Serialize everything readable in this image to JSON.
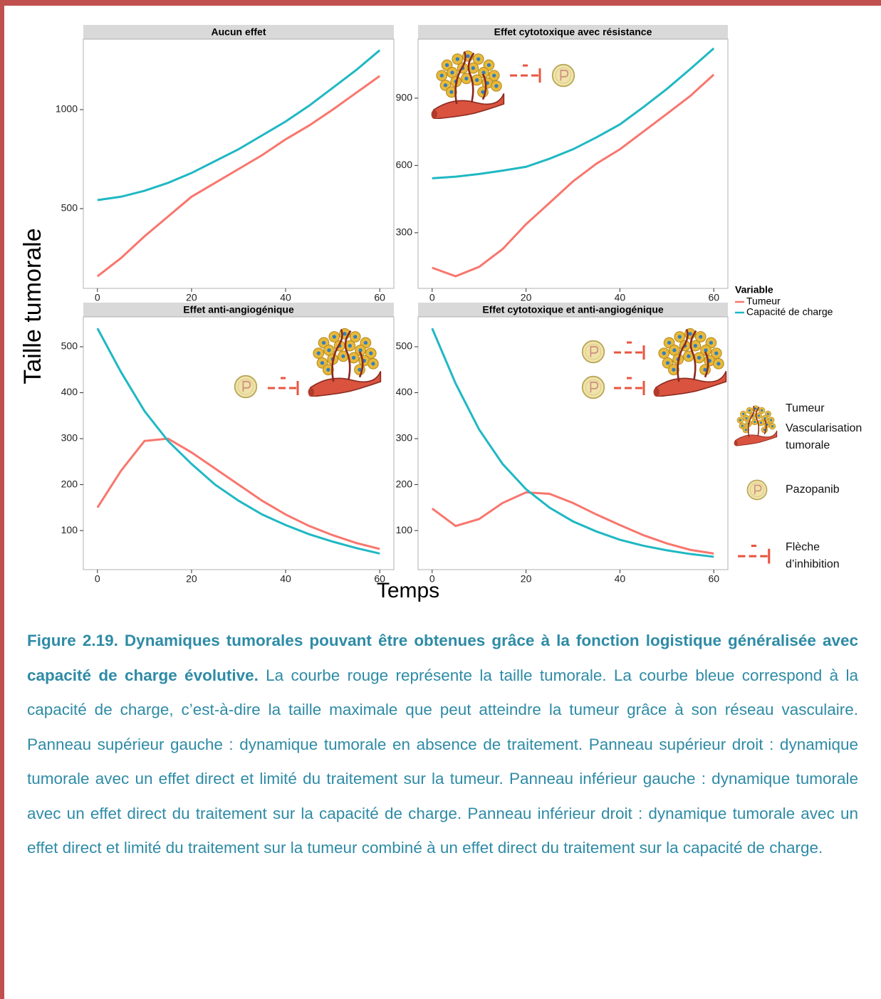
{
  "chart_data": [
    {
      "type": "line",
      "title": "Aucun effet",
      "x": [
        0,
        5,
        10,
        15,
        20,
        25,
        30,
        35,
        40,
        45,
        50,
        55,
        60
      ],
      "series": [
        {
          "name": "Tumeur",
          "color": "#f8766d",
          "values": [
            158,
            250,
            360,
            460,
            560,
            630,
            700,
            770,
            850,
            920,
            1000,
            1085,
            1170
          ]
        },
        {
          "name": "Capacité de charge",
          "color": "#1fb8c3",
          "values": [
            543,
            560,
            590,
            630,
            680,
            740,
            800,
            870,
            940,
            1020,
            1110,
            1200,
            1300
          ]
        }
      ],
      "xlim": [
        -3,
        63
      ],
      "xticks": [
        0,
        20,
        40,
        60
      ],
      "ylim": [
        97,
        1356
      ],
      "yticks": [
        500,
        1000
      ]
    },
    {
      "type": "line",
      "title": "Effet cytotoxique avec résistance",
      "x": [
        0,
        5,
        10,
        15,
        20,
        25,
        30,
        35,
        40,
        45,
        50,
        55,
        60
      ],
      "series": [
        {
          "name": "Tumeur",
          "color": "#f8766d",
          "values": [
            144,
            106,
            148,
            227,
            338,
            433,
            529,
            608,
            672,
            751,
            830,
            910,
            1005
          ]
        },
        {
          "name": "Capacité de charge",
          "color": "#1fb8c3",
          "values": [
            543,
            550,
            562,
            577,
            594,
            630,
            672,
            725,
            783,
            860,
            941,
            1030,
            1122
          ]
        }
      ],
      "xlim": [
        -3,
        63
      ],
      "xticks": [
        0,
        20,
        40,
        60
      ],
      "ylim": [
        52,
        1163
      ],
      "yticks": [
        300,
        600,
        900
      ]
    },
    {
      "type": "line",
      "title": "Effet anti-angiogénique",
      "x": [
        0,
        5,
        10,
        15,
        20,
        25,
        30,
        35,
        40,
        45,
        50,
        55,
        60
      ],
      "series": [
        {
          "name": "Tumeur",
          "color": "#f8766d",
          "values": [
            150,
            230,
            295,
            300,
            270,
            235,
            200,
            165,
            135,
            110,
            90,
            73,
            60
          ]
        },
        {
          "name": "Capacité de charge",
          "color": "#1fb8c3",
          "values": [
            540,
            445,
            360,
            295,
            245,
            200,
            165,
            135,
            112,
            92,
            76,
            62,
            50
          ]
        }
      ],
      "xlim": [
        -3,
        63
      ],
      "xticks": [
        0,
        20,
        40,
        60
      ],
      "ylim": [
        15,
        565
      ],
      "yticks": [
        100,
        200,
        300,
        400,
        500
      ]
    },
    {
      "type": "line",
      "title": "Effet cytotoxique et anti-angiogénique",
      "x": [
        0,
        5,
        10,
        15,
        20,
        25,
        30,
        35,
        40,
        45,
        50,
        55,
        60
      ],
      "series": [
        {
          "name": "Tumeur",
          "color": "#f8766d",
          "values": [
            148,
            110,
            125,
            160,
            183,
            180,
            160,
            135,
            112,
            90,
            72,
            58,
            50
          ]
        },
        {
          "name": "Capacité de charge",
          "color": "#1fb8c3",
          "values": [
            540,
            420,
            320,
            245,
            190,
            150,
            120,
            98,
            80,
            67,
            57,
            49,
            43
          ]
        }
      ],
      "xlim": [
        -3,
        63
      ],
      "xticks": [
        0,
        20,
        40,
        60
      ],
      "ylim": [
        15,
        565
      ],
      "yticks": [
        100,
        200,
        300,
        400,
        500
      ]
    }
  ],
  "x_label": "Temps",
  "y_label": "Taille tumorale",
  "legend_title": "Variable",
  "icon_legend": [
    "Tumeur",
    "Vascularisation tumorale",
    "Pazopanib",
    "Flèche d’inhibition"
  ],
  "caption": {
    "label": "Figure 2.19. Dynamiques tumorales pouvant être obtenues grâce à la fonction logistique généralisée avec capacité de charge évolutive.",
    "text": "La courbe rouge représente la taille tumorale. La courbe bleue correspond à la capacité de charge, c’est-à-dire la taille maximale que peut atteindre la tumeur grâce à son réseau vasculaire. Panneau supérieur gauche : dynamique tumorale en absence de traitement. Panneau supérieur droit : dynamique tumorale avec un effet direct et limité du traitement sur la tumeur. Panneau inférieur gauche : dynamique tumorale avec un effet direct du traitement sur la capacité de charge. Panneau inférieur droit : dynamique tumorale avec un effet direct et limité du traitement sur la tumeur combiné à un effet direct du traitement sur la capacité de charge."
  }
}
